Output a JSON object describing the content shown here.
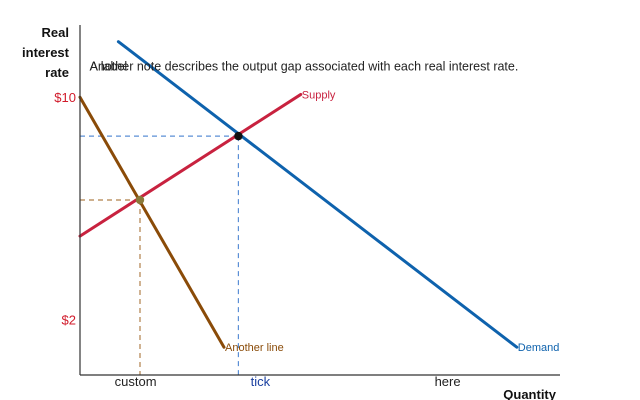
{
  "chart_data": {
    "type": "line",
    "xlabel": "Quantity",
    "ylabel_lines": [
      "Real",
      "interest",
      "rate"
    ],
    "xlim": [
      0,
      100
    ],
    "ylim": [
      0,
      12.6
    ],
    "x_ticks": [
      {
        "x": 12,
        "label": "custom",
        "color": "#222222"
      },
      {
        "x": 38,
        "label": "tick",
        "color": "#1a3fa0"
      },
      {
        "x": 77,
        "label": "here",
        "color": "#222222"
      }
    ],
    "y_ticks": [
      {
        "y": 10,
        "label": "$10",
        "color": "#d11a2a"
      },
      {
        "y": 2,
        "label": "$2",
        "color": "#d11a2a"
      }
    ],
    "series": [
      {
        "name": "Supply",
        "color": "#c8223f",
        "x": [
          0,
          46
        ],
        "y": [
          5,
          10.1
        ]
      },
      {
        "name": "Demand",
        "color": "#0e62ad",
        "x": [
          8,
          91
        ],
        "y": [
          12,
          1
        ]
      },
      {
        "name": "Another line",
        "color": "#8a4b08",
        "x": [
          0,
          30
        ],
        "y": [
          10,
          1
        ]
      }
    ],
    "points": [
      {
        "x": 33,
        "y": 8.6,
        "color": "#111111"
      },
      {
        "x": 12.5,
        "y": 6.3,
        "color": "#8a7a3a"
      }
    ],
    "guides": [
      {
        "x": 33,
        "y": 8.6,
        "color": "#5b8fd6"
      },
      {
        "x": 12.5,
        "y": 6.3,
        "color": "#b0804a"
      }
    ],
    "annotations": [
      {
        "text": "Another note describes the output gap associated with each real interest rate.",
        "x": 2,
        "y": 11.1
      },
      {
        "text": "A label",
        "x": 2,
        "y": 11.1
      }
    ]
  },
  "colors": {
    "axis": "#333333",
    "background": "#ffffff"
  }
}
